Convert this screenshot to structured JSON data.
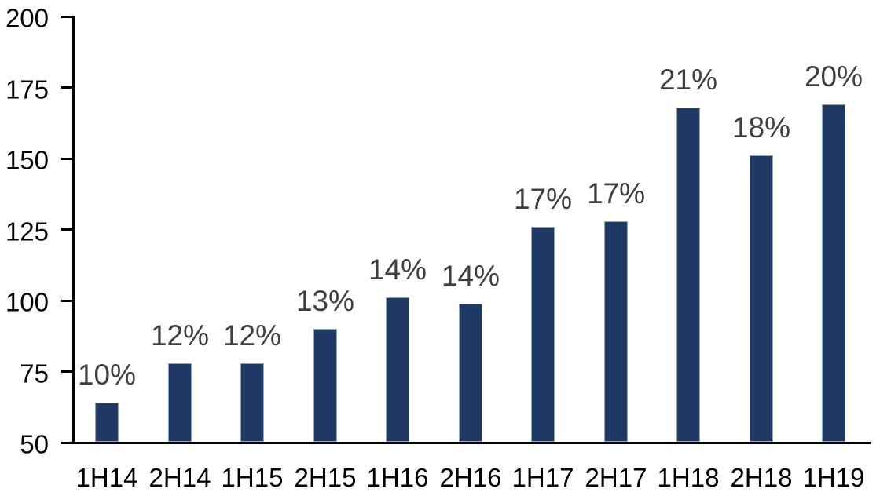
{
  "chart_data": {
    "type": "bar",
    "title": "",
    "xlabel": "",
    "ylabel": "",
    "categories": [
      "1H14",
      "2H14",
      "1H15",
      "2H15",
      "1H16",
      "2H16",
      "1H17",
      "2H17",
      "1H18",
      "2H18",
      "1H19"
    ],
    "values": [
      64,
      78,
      78,
      90,
      101,
      99,
      126,
      128,
      168,
      151,
      169
    ],
    "bar_labels": [
      "10%",
      "12%",
      "12%",
      "13%",
      "14%",
      "14%",
      "17%",
      "17%",
      "21%",
      "18%",
      "20%"
    ],
    "ylim": [
      50,
      200
    ],
    "yticks": [
      50,
      75,
      100,
      125,
      150,
      175,
      200
    ],
    "grid": false,
    "legend_position": "none",
    "colors": {
      "bar_fill": "#1F3864",
      "bar_edge": "#93A5C1",
      "value_label_text": "#3F3F3F",
      "axis_text": "#000000",
      "axis_line": "#000000",
      "background": "#FFFFFF"
    }
  }
}
